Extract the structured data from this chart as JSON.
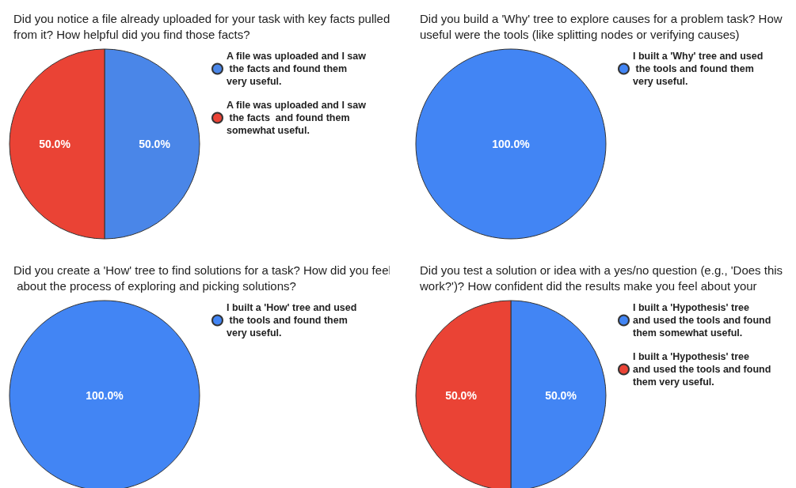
{
  "chart_data": [
    {
      "type": "pie",
      "title": "Did you notice a file already uploaded for your task with key facts pulled from it? How helpful did you find those facts?",
      "categories": [
        "A file was uploaded and I saw the facts and found them very useful.",
        "A file was uploaded and I saw the facts  and found them somewhat useful."
      ],
      "values": [
        50,
        50
      ],
      "colors": [
        "#4a86e8",
        "#ea4335"
      ],
      "value_labels": [
        "50.0%",
        "50.0%"
      ],
      "legend": "right"
    },
    {
      "type": "pie",
      "title": "Did you build a 'Why' tree to explore causes for a problem task? How useful were the tools (like splitting nodes or verifying causes)",
      "categories": [
        "I built a 'Why' tree and used the tools and found them very useful."
      ],
      "values": [
        100
      ],
      "colors": [
        "#4285f4"
      ],
      "value_labels": [
        "100.0%"
      ],
      "legend": "right"
    },
    {
      "type": "pie",
      "title": "Did you create a 'How' tree to find solutions for a task? How did you feel about the process of exploring and picking solutions?",
      "categories": [
        "I built a 'How' tree and used the tools and found them very useful."
      ],
      "values": [
        100
      ],
      "colors": [
        "#4285f4"
      ],
      "value_labels": [
        "100.0%"
      ],
      "legend": "right"
    },
    {
      "type": "pie",
      "title": "Did you test a solution or idea with a yes/no question (e.g., 'Does this work?')? How confident did the results make you feel about your",
      "categories": [
        "I built a 'Hypothesis' tree and used the tools and found them somewhat useful.",
        "I built a 'Hypothesis' tree and used the tools and found them very useful."
      ],
      "values": [
        50,
        50
      ],
      "colors": [
        "#4285f4",
        "#ea4335"
      ],
      "value_labels": [
        "50.0%",
        "50.0%"
      ],
      "legend": "right"
    }
  ]
}
